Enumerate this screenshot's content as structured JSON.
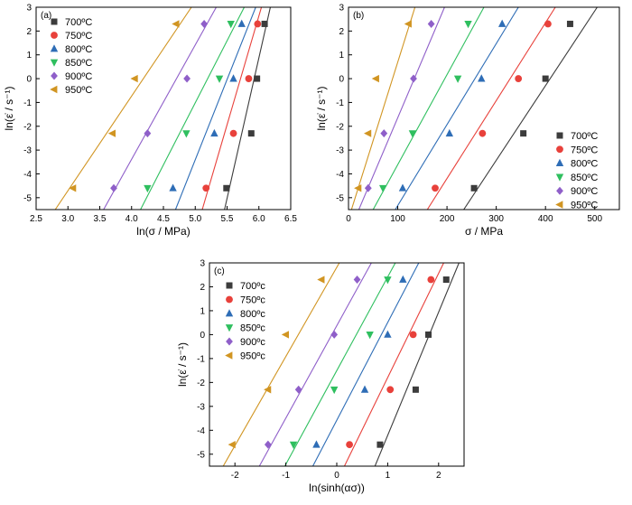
{
  "chart_data": [
    {
      "type": "scatter",
      "panel_label": "(a)",
      "xlabel": "ln(σ / MPa)",
      "ylabel": "ln(ε̇ / s⁻¹)",
      "xlim": [
        2.5,
        6.5
      ],
      "ylim": [
        -5.5,
        3
      ],
      "xticks": [
        2.5,
        3.0,
        3.5,
        4.0,
        4.5,
        5.0,
        5.5,
        6.0,
        6.5
      ],
      "yticks": [
        -5,
        -4,
        -3,
        -2,
        -1,
        0,
        1,
        2,
        3
      ],
      "tick_labels_x": [
        "2.5",
        "3.0",
        "3.5",
        "4.0",
        "4.5",
        "5.0",
        "5.5",
        "6.0",
        "6.5"
      ],
      "tick_labels_y": [
        "-5",
        "-4",
        "-3",
        "-2",
        "-1",
        "0",
        "1",
        "2",
        "3"
      ],
      "legend_position": "top-left",
      "series": [
        {
          "name": "700ºC",
          "marker": "square",
          "color": "#3c3c3c",
          "x": [
            5.49,
            5.88,
            5.97,
            6.09
          ],
          "y": [
            -4.6,
            -2.3,
            0,
            2.3
          ],
          "fit": {
            "x": [
              5.46,
              6.18
            ],
            "y": [
              -5.5,
              3
            ]
          }
        },
        {
          "name": "750ºC",
          "marker": "circle",
          "color": "#e8413b",
          "x": [
            5.17,
            5.6,
            5.84,
            5.98
          ],
          "y": [
            -4.6,
            -2.3,
            0,
            2.3
          ],
          "fit": {
            "x": [
              5.11,
              6.04
            ],
            "y": [
              -5.5,
              3
            ]
          }
        },
        {
          "name": "800ºC",
          "marker": "triangle-up",
          "color": "#2e6db6",
          "x": [
            4.65,
            5.3,
            5.6,
            5.73
          ],
          "y": [
            -4.6,
            -2.3,
            0,
            2.3
          ],
          "fit": {
            "x": [
              4.69,
              5.95
            ],
            "y": [
              -5.5,
              3
            ]
          }
        },
        {
          "name": "850ºC",
          "marker": "triangle-down",
          "color": "#2fbf5f",
          "x": [
            4.25,
            4.86,
            5.38,
            5.56
          ],
          "y": [
            -4.6,
            -2.3,
            0,
            2.3
          ],
          "fit": {
            "x": [
              4.14,
              5.77
            ],
            "y": [
              -5.5,
              3
            ]
          }
        },
        {
          "name": "900ºC",
          "marker": "diamond",
          "color": "#8f5fc9",
          "x": [
            3.72,
            4.25,
            4.87,
            5.14
          ],
          "y": [
            -4.6,
            -2.3,
            0,
            2.3
          ],
          "fit": {
            "x": [
              3.56,
              5.33
            ],
            "y": [
              -5.5,
              3
            ]
          }
        },
        {
          "name": "950ºC",
          "marker": "triangle-left",
          "color": "#d19522",
          "x": [
            3.08,
            3.7,
            4.05,
            4.7
          ],
          "y": [
            -4.6,
            -2.3,
            0,
            2.3
          ],
          "fit": {
            "x": [
              2.8,
              4.94
            ],
            "y": [
              -5.5,
              3
            ]
          }
        }
      ]
    },
    {
      "type": "scatter",
      "panel_label": "(b)",
      "xlabel": "σ / MPa",
      "ylabel": "ln(ε̇ / s⁻¹)",
      "xlim": [
        0,
        550
      ],
      "ylim": [
        -5.5,
        3
      ],
      "xticks": [
        0,
        100,
        200,
        300,
        400,
        500
      ],
      "yticks": [
        -5,
        -4,
        -3,
        -2,
        -1,
        0,
        1,
        2,
        3
      ],
      "tick_labels_x": [
        "0",
        "100",
        "200",
        "300",
        "400",
        "500"
      ],
      "tick_labels_y": [
        "-5",
        "-4",
        "-3",
        "-2",
        "-1",
        "0",
        "1",
        "2",
        "3"
      ],
      "legend_position": "bottom-right",
      "series": [
        {
          "name": "700ºC",
          "marker": "square",
          "color": "#3c3c3c",
          "x": [
            255,
            355,
            400,
            450
          ],
          "y": [
            -4.6,
            -2.3,
            0,
            2.3
          ],
          "fit": {
            "x": [
              234,
              505
            ],
            "y": [
              -5.5,
              3
            ]
          }
        },
        {
          "name": "750ºC",
          "marker": "circle",
          "color": "#e8413b",
          "x": [
            176,
            272,
            345,
            405
          ],
          "y": [
            -4.6,
            -2.3,
            0,
            2.3
          ],
          "fit": {
            "x": [
              160,
              420
            ],
            "y": [
              -5.5,
              3
            ]
          }
        },
        {
          "name": "800ºC",
          "marker": "triangle-up",
          "color": "#2e6db6",
          "x": [
            110,
            205,
            270,
            312
          ],
          "y": [
            -4.6,
            -2.3,
            0,
            2.3
          ],
          "fit": {
            "x": [
              95,
              345
            ],
            "y": [
              -5.5,
              3
            ]
          }
        },
        {
          "name": "850ºC",
          "marker": "triangle-down",
          "color": "#2fbf5f",
          "x": [
            70,
            130,
            222,
            243
          ],
          "y": [
            -4.6,
            -2.3,
            0,
            2.3
          ],
          "fit": {
            "x": [
              50,
              275
            ],
            "y": [
              -5.5,
              3
            ]
          }
        },
        {
          "name": "900ºC",
          "marker": "diamond",
          "color": "#8f5fc9",
          "x": [
            40,
            72,
            132,
            168
          ],
          "y": [
            -4.6,
            -2.3,
            0,
            2.3
          ],
          "fit": {
            "x": [
              21,
              195
            ],
            "y": [
              -5.5,
              3
            ]
          }
        },
        {
          "name": "950ºC",
          "marker": "triangle-left",
          "color": "#d19522",
          "x": [
            20,
            40,
            56,
            122
          ],
          "y": [
            -4.6,
            -2.3,
            0,
            2.3
          ],
          "fit": {
            "x": [
              6,
              135
            ],
            "y": [
              -5.5,
              3
            ]
          }
        }
      ]
    },
    {
      "type": "scatter",
      "panel_label": "(c)",
      "xlabel": "ln(sinh(ασ))",
      "ylabel": "ln(ε̇ / s⁻¹)",
      "xlim": [
        -2.5,
        2.5
      ],
      "ylim": [
        -5.5,
        3
      ],
      "xticks": [
        -2,
        -1,
        0,
        1,
        2
      ],
      "yticks": [
        -5,
        -4,
        -3,
        -2,
        -1,
        0,
        1,
        2,
        3
      ],
      "tick_labels_x": [
        "-2",
        "-1",
        "0",
        "1",
        "2"
      ],
      "tick_labels_y": [
        "-5",
        "-4",
        "-3",
        "-2",
        "-1",
        "0",
        "1",
        "2",
        "3"
      ],
      "legend_position": "top-left",
      "series": [
        {
          "name": "700ºc",
          "marker": "square",
          "color": "#3c3c3c",
          "x": [
            0.85,
            1.55,
            1.8,
            2.15
          ],
          "y": [
            -4.6,
            -2.3,
            0,
            2.3
          ],
          "fit": {
            "x": [
              0.75,
              2.4
            ],
            "y": [
              -5.5,
              3
            ]
          }
        },
        {
          "name": "750ºc",
          "marker": "circle",
          "color": "#e8413b",
          "x": [
            0.25,
            1.05,
            1.5,
            1.85
          ],
          "y": [
            -4.6,
            -2.3,
            0,
            2.3
          ],
          "fit": {
            "x": [
              0.15,
              2.1
            ],
            "y": [
              -5.5,
              3
            ]
          }
        },
        {
          "name": "800ºc",
          "marker": "triangle-up",
          "color": "#2e6db6",
          "x": [
            -0.4,
            0.55,
            1.0,
            1.3
          ],
          "y": [
            -4.6,
            -2.3,
            0,
            2.3
          ],
          "fit": {
            "x": [
              -0.47,
              1.61
            ],
            "y": [
              -5.5,
              3
            ]
          }
        },
        {
          "name": "850ºc",
          "marker": "triangle-down",
          "color": "#2fbf5f",
          "x": [
            -0.85,
            -0.05,
            0.65,
            1.0
          ],
          "y": [
            -4.6,
            -2.3,
            0,
            2.3
          ],
          "fit": {
            "x": [
              -1.02,
              1.15
            ],
            "y": [
              -5.5,
              3
            ]
          }
        },
        {
          "name": "900ºc",
          "marker": "diamond",
          "color": "#8f5fc9",
          "x": [
            -1.35,
            -0.75,
            -0.05,
            0.4
          ],
          "y": [
            -4.6,
            -2.3,
            0,
            2.3
          ],
          "fit": {
            "x": [
              -1.52,
              0.68
            ],
            "y": [
              -5.5,
              3
            ]
          }
        },
        {
          "name": "950ºc",
          "marker": "triangle-left",
          "color": "#d19522",
          "x": [
            -2.05,
            -1.35,
            -1.0,
            -0.3
          ],
          "y": [
            -4.6,
            -2.3,
            0,
            2.3
          ],
          "fit": {
            "x": [
              -2.23,
              0.05
            ],
            "y": [
              -5.5,
              3
            ]
          }
        }
      ]
    }
  ]
}
